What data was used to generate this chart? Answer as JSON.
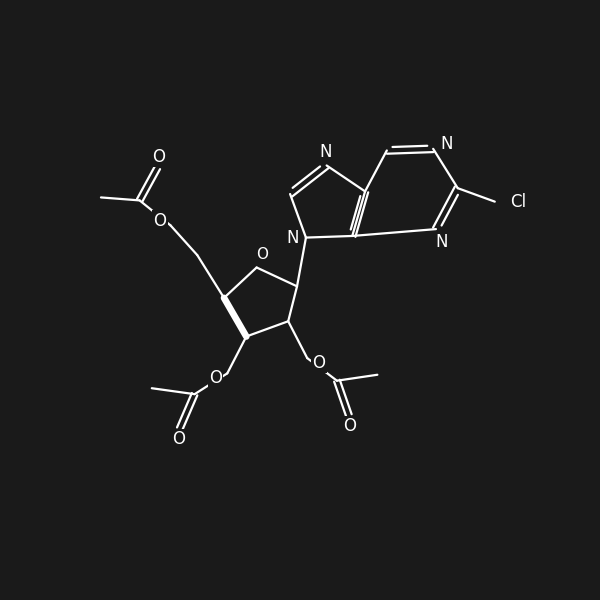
{
  "background_color": "#1a1a1a",
  "line_color": "#ffffff",
  "line_width": 1.6,
  "font_size": 12,
  "figsize": [
    6.0,
    6.0
  ],
  "dpi": 100,
  "xlim": [
    0,
    10
  ],
  "ylim": [
    0,
    10
  ]
}
